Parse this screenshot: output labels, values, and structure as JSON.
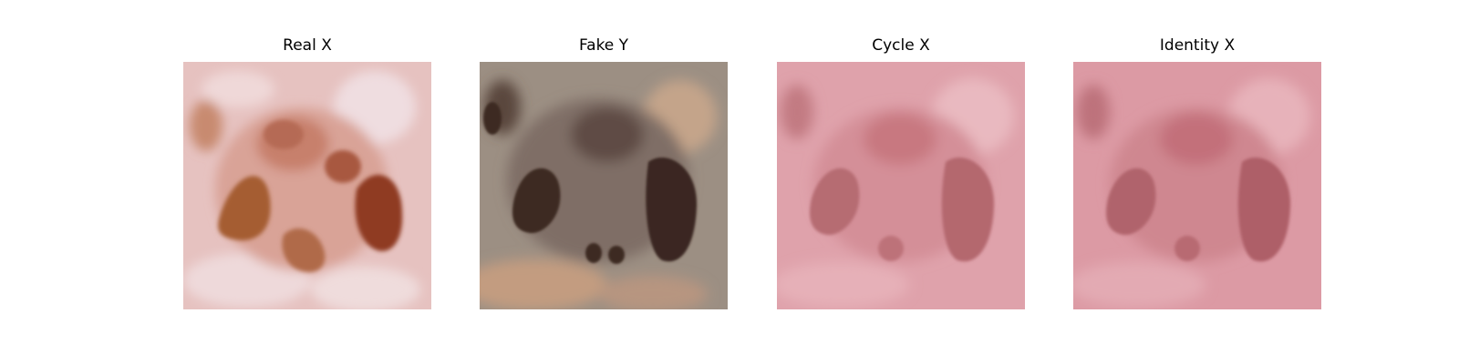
{
  "panels": [
    {
      "title": "Real X"
    },
    {
      "title": "Fake Y"
    },
    {
      "title": "Cycle X"
    },
    {
      "title": "Identity X"
    }
  ],
  "colors": {
    "real_background": "#e8c6c4",
    "real_lesion": "#9a4a2a",
    "fake_background": "#a89a8a",
    "fake_lesion": "#3d2a22",
    "cycle_background": "#dd9ea8",
    "cycle_lesion": "#b66c72",
    "identity_background": "#d8909c",
    "identity_lesion": "#b0646c"
  }
}
